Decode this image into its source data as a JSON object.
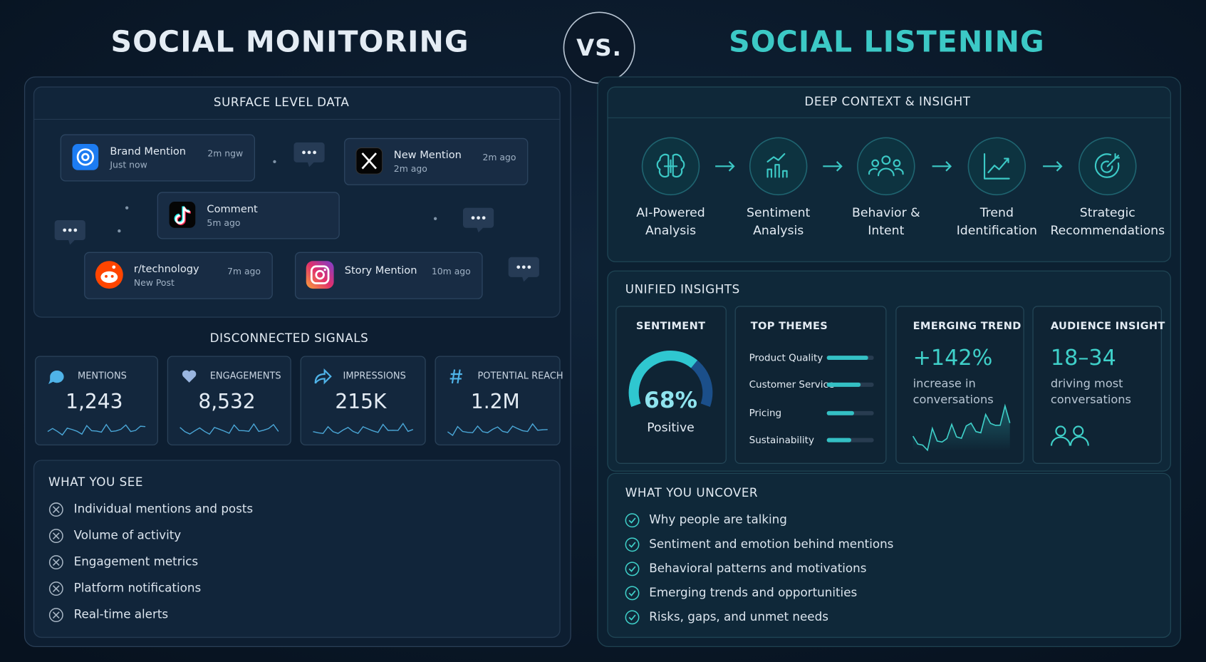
{
  "left": {
    "title": "SOCIAL MONITORING",
    "surface": {
      "title": "SURFACE LEVEL DATA",
      "cards": [
        {
          "name": "Brand Mention",
          "sub": "Just now",
          "time": "2m ngw"
        },
        {
          "name": "New Mention",
          "sub": "2m ago",
          "time": "2m ago"
        },
        {
          "name": "Comment",
          "sub": "5m ago"
        },
        {
          "name": "r/technology",
          "sub": "New Post",
          "time": "7m ago"
        },
        {
          "name": "Story Mention",
          "time": "10m ago"
        }
      ]
    },
    "signals": {
      "title": "DISCONNECTED SIGNALS",
      "metrics": [
        {
          "label": "MENTIONS",
          "value": "1,243"
        },
        {
          "label": "ENGAGEMENTS",
          "value": "8,532"
        },
        {
          "label": "IMPRESSIONS",
          "value": "215K"
        },
        {
          "label": "POTENTIAL REACH",
          "value": "1.2M"
        }
      ]
    },
    "see": {
      "title": "WHAT YOU SEE",
      "items": [
        "Individual mentions and posts",
        "Volume of activity",
        "Engagement metrics",
        "Platform notifications",
        "Real-time alerts"
      ]
    }
  },
  "vs": "VS.",
  "right": {
    "title": "SOCIAL LISTENING",
    "deep": {
      "title": "DEEP CONTEXT & INSIGHT",
      "steps": [
        [
          "AI-Powered",
          "Analysis"
        ],
        [
          "Sentiment",
          "Analysis"
        ],
        [
          "Behavior &",
          "Intent"
        ],
        [
          "Trend",
          "Identification"
        ],
        [
          "Strategic",
          "Recommendations"
        ]
      ]
    },
    "unified": {
      "title": "UNIFIED INSIGHTS",
      "sentiment": {
        "title": "SENTIMENT",
        "value": 68,
        "value_label": "68%",
        "label": "Positive",
        "range": [
          0,
          100
        ]
      },
      "themes": {
        "title": "TOP THEMES",
        "xlim": [
          0,
          100
        ],
        "items": [
          {
            "name": "Product Quality",
            "value": 88
          },
          {
            "name": "Customer Service",
            "value": 72
          },
          {
            "name": "Pricing",
            "value": 58
          },
          {
            "name": "Sustainability",
            "value": 52
          }
        ]
      },
      "trend": {
        "title": "EMERGING TREND",
        "value": "+142%",
        "lines": [
          "increase in",
          "conversations"
        ]
      },
      "audience": {
        "title": "AUDIENCE INSIGHT",
        "value": "18–34",
        "lines": [
          "driving most",
          "conversations"
        ]
      }
    },
    "uncover": {
      "title": "WHAT YOU UNCOVER",
      "items": [
        "Why people are talking",
        "Sentiment and emotion behind mentions",
        "Behavioral patterns and motivations",
        "Emerging trends and opportunities",
        "Risks, gaps, and unmet needs"
      ]
    }
  }
}
